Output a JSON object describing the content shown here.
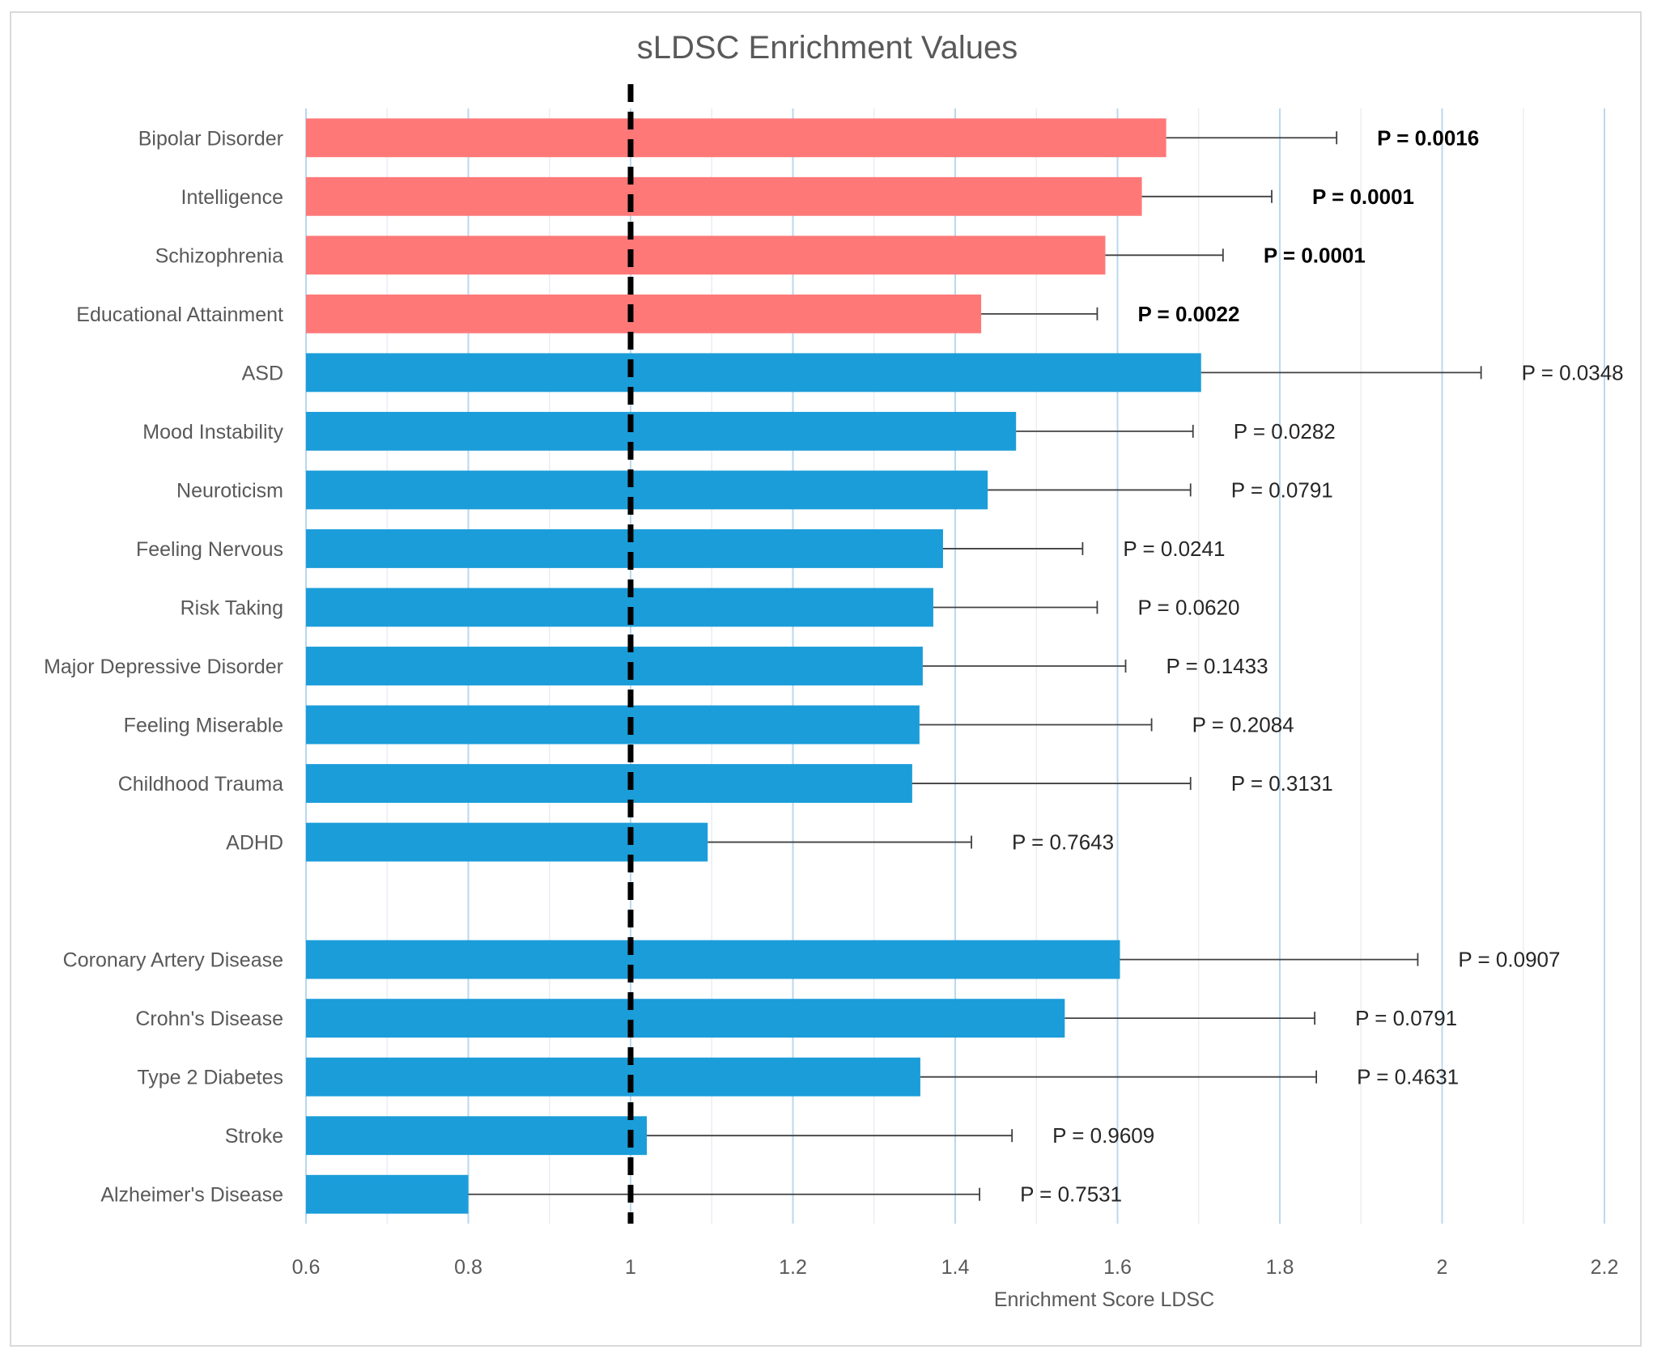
{
  "chart_data": {
    "type": "bar",
    "orientation": "horizontal",
    "title": "sLDSC Enrichment Values",
    "xlabel": "Enrichment Score LDSC",
    "ylabel": "",
    "xlim": [
      0.6,
      2.2
    ],
    "xticks": [
      0.6,
      0.8,
      1,
      1.2,
      1.4,
      1.6,
      1.8,
      2,
      2.2
    ],
    "reference_line": 1,
    "colors": {
      "significant": "#ff7878",
      "other": "#1b9dd9",
      "reference": "#000000"
    },
    "series": [
      {
        "category": "Bipolar Disorder",
        "value": 1.66,
        "error_upper": 1.87,
        "p_label": "P = 0.0016",
        "significant": true
      },
      {
        "category": "Intelligence",
        "value": 1.63,
        "error_upper": 1.79,
        "p_label": "P = 0.0001",
        "significant": true
      },
      {
        "category": "Schizophrenia",
        "value": 1.585,
        "error_upper": 1.73,
        "p_label": "P = 0.0001",
        "significant": true
      },
      {
        "category": "Educational Attainment",
        "value": 1.432,
        "error_upper": 1.575,
        "p_label": "P = 0.0022",
        "significant": true
      },
      {
        "category": "ASD",
        "value": 1.703,
        "error_upper": 2.048,
        "p_label": "P = 0.0348",
        "significant": false
      },
      {
        "category": "Mood Instability",
        "value": 1.475,
        "error_upper": 1.693,
        "p_label": "P = 0.0282",
        "significant": false
      },
      {
        "category": "Neuroticism",
        "value": 1.44,
        "error_upper": 1.69,
        "p_label": "P = 0.0791",
        "significant": false
      },
      {
        "category": "Feeling Nervous",
        "value": 1.385,
        "error_upper": 1.557,
        "p_label": "P = 0.0241",
        "significant": false
      },
      {
        "category": "Risk Taking",
        "value": 1.373,
        "error_upper": 1.575,
        "p_label": "P = 0.0620",
        "significant": false
      },
      {
        "category": "Major Depressive Disorder",
        "value": 1.36,
        "error_upper": 1.61,
        "p_label": "P = 0.1433",
        "significant": false
      },
      {
        "category": "Feeling Miserable",
        "value": 1.356,
        "error_upper": 1.642,
        "p_label": "P = 0.2084",
        "significant": false
      },
      {
        "category": "Childhood Trauma",
        "value": 1.347,
        "error_upper": 1.69,
        "p_label": "P = 0.3131",
        "significant": false
      },
      {
        "category": "ADHD",
        "value": 1.095,
        "error_upper": 1.42,
        "p_label": "P = 0.7643",
        "significant": false
      },
      {
        "category": "",
        "value": null,
        "error_upper": null,
        "p_label": "",
        "significant": false
      },
      {
        "category": "Coronary Artery Disease",
        "value": 1.603,
        "error_upper": 1.97,
        "p_label": "P = 0.0907",
        "significant": false
      },
      {
        "category": "Crohn's Disease",
        "value": 1.535,
        "error_upper": 1.843,
        "p_label": "P = 0.0791",
        "significant": false
      },
      {
        "category": "Type 2 Diabetes",
        "value": 1.357,
        "error_upper": 1.845,
        "p_label": "P = 0.4631",
        "significant": false
      },
      {
        "category": "Stroke",
        "value": 1.02,
        "error_upper": 1.47,
        "p_label": "P = 0.9609",
        "significant": false
      },
      {
        "category": "Alzheimer's Disease",
        "value": 0.8,
        "error_upper": 1.43,
        "p_label": "P = 0.7531",
        "significant": false
      }
    ]
  }
}
